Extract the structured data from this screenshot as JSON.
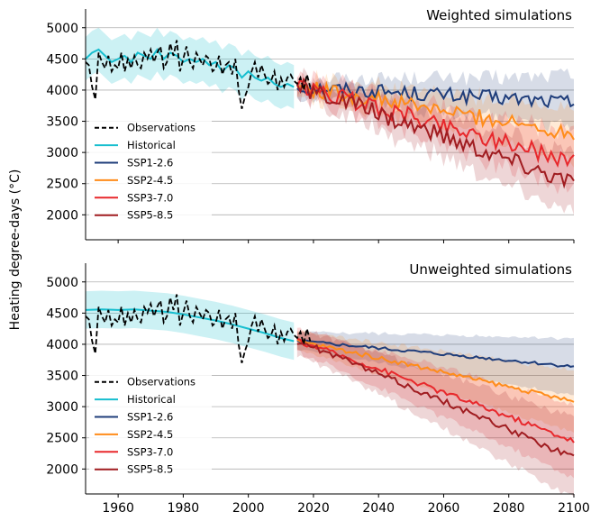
{
  "figure": {
    "ylabel": "Heating degree-days (°C)"
  },
  "chart_data": [
    {
      "type": "line",
      "title": "Weighted simulations",
      "xlim": [
        1950,
        2100
      ],
      "ylim": [
        1600,
        5300
      ],
      "xticks": [
        1960,
        1980,
        2000,
        2020,
        2040,
        2060,
        2080,
        2100
      ],
      "yticks": [
        2000,
        2500,
        3000,
        3500,
        4000,
        4500,
        5000
      ],
      "grid": "horizontal",
      "legend": "lower-left",
      "observations": {
        "name": "Observations",
        "color": "#000000",
        "x": [
          1950,
          1951,
          1952,
          1953,
          1954,
          1955,
          1956,
          1957,
          1958,
          1959,
          1960,
          1961,
          1962,
          1963,
          1964,
          1965,
          1966,
          1967,
          1968,
          1969,
          1970,
          1971,
          1972,
          1973,
          1974,
          1975,
          1976,
          1977,
          1978,
          1979,
          1980,
          1981,
          1982,
          1983,
          1984,
          1985,
          1986,
          1987,
          1988,
          1989,
          1990,
          1991,
          1992,
          1993,
          1994,
          1995,
          1996,
          1997,
          1998,
          1999,
          2000,
          2001,
          2002,
          2003,
          2004,
          2005,
          2006,
          2007,
          2008,
          2009,
          2010,
          2011,
          2012,
          2013,
          2014,
          2015,
          2016,
          2017,
          2018,
          2019
        ],
        "y": [
          4450,
          4400,
          4050,
          3850,
          4600,
          4450,
          4350,
          4550,
          4300,
          4400,
          4350,
          4600,
          4300,
          4500,
          4350,
          4550,
          4400,
          4350,
          4600,
          4500,
          4650,
          4450,
          4600,
          4700,
          4350,
          4450,
          4750,
          4550,
          4800,
          4300,
          4500,
          4700,
          4450,
          4350,
          4600,
          4500,
          4400,
          4550,
          4500,
          4300,
          4350,
          4550,
          4250,
          4400,
          4450,
          4250,
          4500,
          4000,
          3700,
          3900,
          4050,
          4300,
          4450,
          4200,
          4400,
          4250,
          4100,
          4150,
          4300,
          4000,
          4200,
          4050,
          4200,
          4250,
          4150,
          4100,
          4200,
          4000,
          4250,
          4050
        ]
      },
      "historical": {
        "name": "Historical",
        "color": "#17becf",
        "x": [
          1950,
          1952,
          1954,
          1956,
          1958,
          1960,
          1962,
          1964,
          1966,
          1968,
          1970,
          1972,
          1974,
          1976,
          1978,
          1980,
          1982,
          1984,
          1986,
          1988,
          1990,
          1992,
          1994,
          1996,
          1998,
          2000,
          2002,
          2004,
          2006,
          2008,
          2010,
          2012,
          2014
        ],
        "y": [
          4500,
          4600,
          4650,
          4550,
          4450,
          4500,
          4550,
          4450,
          4600,
          4550,
          4500,
          4650,
          4500,
          4600,
          4550,
          4450,
          4500,
          4450,
          4500,
          4400,
          4450,
          4300,
          4400,
          4350,
          4200,
          4300,
          4200,
          4150,
          4200,
          4100,
          4050,
          4100,
          4050
        ],
        "band": 350
      },
      "series": [
        {
          "name": "SSP1-2.6",
          "color": "#1f3d7a",
          "start": 4050,
          "end": 3800,
          "band": 320,
          "noise": 120
        },
        {
          "name": "SSP2-4.5",
          "color": "#ff8c1a",
          "start": 4050,
          "end": 3300,
          "band": 320,
          "noise": 130
        },
        {
          "name": "SSP3-7.0",
          "color": "#e8282c",
          "start": 4050,
          "end": 2850,
          "band": 360,
          "noise": 140
        },
        {
          "name": "SSP5-8.5",
          "color": "#a01c20",
          "start": 4050,
          "end": 2500,
          "band": 380,
          "noise": 150
        }
      ]
    },
    {
      "type": "line",
      "title": "Unweighted simulations",
      "xlim": [
        1950,
        2100
      ],
      "ylim": [
        1600,
        5300
      ],
      "xticks": [
        1960,
        1980,
        2000,
        2020,
        2040,
        2060,
        2080,
        2100
      ],
      "yticks": [
        2000,
        2500,
        3000,
        3500,
        4000,
        4500,
        5000
      ],
      "grid": "horizontal",
      "legend": "lower-left",
      "observations": {
        "name": "Observations",
        "color": "#000000",
        "x": [
          1950,
          1951,
          1952,
          1953,
          1954,
          1955,
          1956,
          1957,
          1958,
          1959,
          1960,
          1961,
          1962,
          1963,
          1964,
          1965,
          1966,
          1967,
          1968,
          1969,
          1970,
          1971,
          1972,
          1973,
          1974,
          1975,
          1976,
          1977,
          1978,
          1979,
          1980,
          1981,
          1982,
          1983,
          1984,
          1985,
          1986,
          1987,
          1988,
          1989,
          1990,
          1991,
          1992,
          1993,
          1994,
          1995,
          1996,
          1997,
          1998,
          1999,
          2000,
          2001,
          2002,
          2003,
          2004,
          2005,
          2006,
          2007,
          2008,
          2009,
          2010,
          2011,
          2012,
          2013,
          2014,
          2015,
          2016,
          2017,
          2018,
          2019
        ],
        "y": [
          4450,
          4400,
          4050,
          3850,
          4600,
          4450,
          4350,
          4550,
          4300,
          4400,
          4350,
          4600,
          4300,
          4500,
          4350,
          4550,
          4400,
          4350,
          4600,
          4500,
          4650,
          4450,
          4600,
          4700,
          4350,
          4450,
          4750,
          4550,
          4800,
          4300,
          4500,
          4700,
          4450,
          4350,
          4600,
          4500,
          4400,
          4550,
          4500,
          4300,
          4350,
          4550,
          4250,
          4400,
          4450,
          4250,
          4500,
          4000,
          3700,
          3900,
          4050,
          4300,
          4450,
          4200,
          4400,
          4250,
          4100,
          4150,
          4300,
          4000,
          4200,
          4050,
          4200,
          4250,
          4150,
          4100,
          4200,
          4000,
          4250,
          4050
        ]
      },
      "historical": {
        "name": "Historical",
        "color": "#17becf",
        "x": [
          1950,
          1955,
          1960,
          1965,
          1970,
          1975,
          1980,
          1985,
          1990,
          1995,
          2000,
          2005,
          2010,
          2014
        ],
        "y": [
          4550,
          4560,
          4550,
          4560,
          4540,
          4520,
          4480,
          4430,
          4380,
          4320,
          4250,
          4180,
          4100,
          4050
        ],
        "band": 300
      },
      "series": [
        {
          "name": "SSP1-2.6",
          "color": "#1f3d7a",
          "start": 4050,
          "end": 3640,
          "band": 350,
          "noise": 25
        },
        {
          "name": "SSP2-4.5",
          "color": "#ff8c1a",
          "start": 4050,
          "end": 3080,
          "band": 380,
          "noise": 35
        },
        {
          "name": "SSP3-7.0",
          "color": "#e8282c",
          "start": 4050,
          "end": 2450,
          "band": 450,
          "noise": 45
        },
        {
          "name": "SSP5-8.5",
          "color": "#a01c20",
          "start": 4050,
          "end": 2170,
          "band": 500,
          "noise": 50
        }
      ]
    }
  ]
}
